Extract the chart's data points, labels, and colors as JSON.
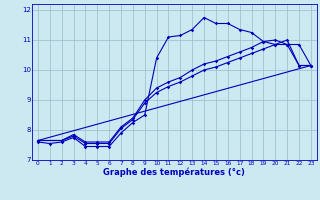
{
  "title": "Graphe des températures (°c)",
  "xlim": [
    -0.5,
    23.5
  ],
  "ylim": [
    7,
    12.2
  ],
  "yticks": [
    7,
    8,
    9,
    10,
    11,
    12
  ],
  "xticks": [
    0,
    1,
    2,
    3,
    4,
    5,
    6,
    7,
    8,
    9,
    10,
    11,
    12,
    13,
    14,
    15,
    16,
    17,
    18,
    19,
    20,
    21,
    22,
    23
  ],
  "bg_color": "#cce8f0",
  "grid_color": "#99bbcc",
  "line_color": "#0000bb",
  "line1_x": [
    0,
    1,
    2,
    3,
    4,
    5,
    6,
    7,
    8,
    9,
    10,
    11,
    12,
    13,
    14,
    15,
    16,
    17,
    18,
    19,
    20,
    21,
    22,
    23
  ],
  "line1_y": [
    7.6,
    7.55,
    7.6,
    7.75,
    7.45,
    7.45,
    7.45,
    7.9,
    8.25,
    8.5,
    10.4,
    11.1,
    11.15,
    11.35,
    11.75,
    11.55,
    11.55,
    11.35,
    11.25,
    10.95,
    10.85,
    10.85,
    10.15,
    10.15
  ],
  "line2_x": [
    0,
    23
  ],
  "line2_y": [
    7.65,
    10.15
  ],
  "line3_x": [
    0,
    2,
    3,
    4,
    5,
    6,
    7,
    8,
    9,
    10,
    11,
    12,
    13,
    14,
    15,
    16,
    17,
    18,
    19,
    20,
    21,
    22,
    23
  ],
  "line3_y": [
    7.65,
    7.65,
    7.8,
    7.55,
    7.55,
    7.55,
    8.05,
    8.35,
    8.9,
    9.25,
    9.45,
    9.6,
    9.8,
    10.0,
    10.1,
    10.25,
    10.4,
    10.55,
    10.7,
    10.85,
    11.0,
    10.15,
    10.15
  ],
  "line4_x": [
    0,
    2,
    3,
    4,
    5,
    6,
    7,
    8,
    9,
    10,
    11,
    12,
    13,
    14,
    15,
    16,
    17,
    18,
    19,
    20,
    21,
    22,
    23
  ],
  "line4_y": [
    7.65,
    7.65,
    7.85,
    7.6,
    7.6,
    7.6,
    8.1,
    8.4,
    9.0,
    9.4,
    9.6,
    9.75,
    10.0,
    10.2,
    10.3,
    10.45,
    10.6,
    10.75,
    10.95,
    11.0,
    10.85,
    10.85,
    10.15
  ]
}
